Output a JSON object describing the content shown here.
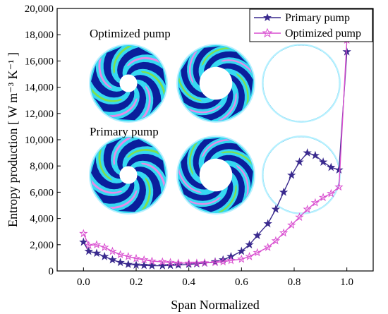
{
  "chart_data": {
    "type": "line",
    "xlabel": "Span Normalized",
    "ylabel": "Entropy production [ W m⁻³ K⁻¹ ]",
    "xlim": [
      -0.1,
      1.1
    ],
    "ylim": [
      0,
      20000
    ],
    "x_ticks": [
      "0.0",
      "0.2",
      "0.4",
      "0.6",
      "0.8",
      "1.0"
    ],
    "y_ticks": [
      "0",
      "2,000",
      "4,000",
      "6,000",
      "8,000",
      "10,000",
      "12,000",
      "14,000",
      "16,000",
      "18,000",
      "20,000"
    ],
    "x_tick_values": [
      0.0,
      0.2,
      0.4,
      0.6,
      0.8,
      1.0
    ],
    "y_tick_values": [
      0,
      2000,
      4000,
      6000,
      8000,
      10000,
      12000,
      14000,
      16000,
      18000,
      20000
    ],
    "series": [
      {
        "name": "Primary pump",
        "color": "#3a2a8e",
        "x": [
          0.0,
          0.02,
          0.05,
          0.08,
          0.11,
          0.14,
          0.17,
          0.2,
          0.23,
          0.26,
          0.3,
          0.33,
          0.36,
          0.4,
          0.43,
          0.46,
          0.5,
          0.53,
          0.56,
          0.6,
          0.63,
          0.66,
          0.7,
          0.73,
          0.76,
          0.79,
          0.82,
          0.85,
          0.88,
          0.91,
          0.94,
          0.97,
          1.0
        ],
        "values": [
          2200,
          1500,
          1350,
          1100,
          850,
          650,
          500,
          450,
          420,
          400,
          400,
          420,
          450,
          500,
          550,
          600,
          700,
          850,
          1100,
          1500,
          2000,
          2700,
          3600,
          4700,
          6000,
          7300,
          8300,
          9000,
          8800,
          8300,
          7900,
          7700,
          16700
        ]
      },
      {
        "name": "Optimized pump",
        "color": "#d94fd0",
        "x": [
          0.0,
          0.02,
          0.05,
          0.08,
          0.11,
          0.14,
          0.17,
          0.2,
          0.23,
          0.26,
          0.3,
          0.33,
          0.36,
          0.4,
          0.43,
          0.46,
          0.5,
          0.53,
          0.56,
          0.6,
          0.63,
          0.66,
          0.7,
          0.73,
          0.76,
          0.79,
          0.82,
          0.85,
          0.88,
          0.91,
          0.94,
          0.97,
          1.0
        ],
        "values": [
          2850,
          1950,
          2000,
          1800,
          1500,
          1250,
          1100,
          950,
          850,
          750,
          700,
          650,
          600,
          600,
          600,
          620,
          650,
          700,
          800,
          900,
          1100,
          1400,
          1800,
          2300,
          2900,
          3500,
          4100,
          4700,
          5200,
          5600,
          5900,
          6400,
          17600
        ]
      }
    ],
    "legend": {
      "position": "top-right",
      "entries": [
        "Primary pump",
        "Optimized pump"
      ]
    },
    "annotations": [
      "Optimized pump",
      "Primary pump"
    ]
  },
  "colors": {
    "primary": "#3a2a8e",
    "optimized": "#d94fd0",
    "inset_dark": "#0a1f9c",
    "inset_cyan": "#36d9f2",
    "inset_green": "#7ee04f",
    "inset_magenta": "#e88ae8",
    "inset_light": "#b9f0ff"
  },
  "insets": {
    "optimized_label": "Optimized pump",
    "primary_label": "Primary pump",
    "rows": [
      {
        "name": "optimized",
        "hubs": [
          0.14,
          0.26,
          0.4
        ]
      },
      {
        "name": "primary",
        "hubs": [
          0.14,
          0.26,
          0.4
        ]
      }
    ]
  }
}
